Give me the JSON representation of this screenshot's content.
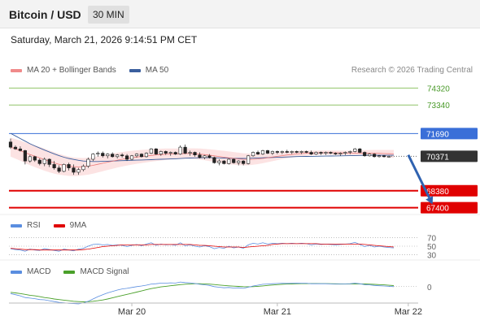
{
  "header": {
    "title": "Bitcoin / USD",
    "interval": "30 MIN"
  },
  "datetime": "Saturday, March 21, 2026 9:14:51 PM CET",
  "copyright": "Research © 2026 Trading Central",
  "colors": {
    "resistance": "#90c468",
    "pivot": "#3a6fd8",
    "support": "#e00000",
    "current": "#333333",
    "bollinger_fill": "#fbdcdc",
    "ma20": "#e86060",
    "ma50": "#3b5f9e",
    "rsi": "#5a8ee0",
    "rsi_ma": "#e00000",
    "macd": "#5a8ee0",
    "macd_signal": "#4aa02a",
    "arrow": "#2f62b0"
  },
  "chart_data": [
    {
      "type": "line",
      "name": "price",
      "legend": [
        {
          "label": "MA 20 + Bollinger Bands",
          "color": "#f08a8a"
        },
        {
          "label": "MA 50",
          "color": "#3b5f9e"
        }
      ],
      "ylim": [
        67100,
        74900
      ],
      "x_ticks": [
        {
          "label": "Mar 20",
          "index": 25
        },
        {
          "label": "Mar 21",
          "index": 55
        },
        {
          "label": "Mar 22",
          "index": 82
        }
      ],
      "levels": [
        {
          "label": "74320",
          "value": 74320,
          "role": "resistance"
        },
        {
          "label": "73340",
          "value": 73340,
          "role": "resistance"
        },
        {
          "label": "71690",
          "value": 71690,
          "role": "pivot"
        },
        {
          "label": "70371",
          "value": 70371,
          "role": "current"
        },
        {
          "label": "68380",
          "value": 68380,
          "role": "support"
        },
        {
          "label": "67400",
          "value": 67400,
          "role": "support"
        }
      ],
      "arrow": {
        "from": {
          "index": 82,
          "value": 70450
        },
        "to": {
          "index": 87,
          "value": 67600
        }
      },
      "candles": [
        [
          71200,
          71400,
          70800,
          70900
        ],
        [
          70900,
          71000,
          70750,
          70800
        ],
        [
          70800,
          70950,
          70650,
          70700
        ],
        [
          70700,
          70750,
          69900,
          70100
        ],
        [
          70100,
          70450,
          70000,
          70350
        ],
        [
          70350,
          70400,
          70050,
          70150
        ],
        [
          70150,
          70250,
          69850,
          69950
        ],
        [
          69950,
          70300,
          69800,
          70200
        ],
        [
          70200,
          70250,
          69750,
          69900
        ],
        [
          69900,
          70100,
          69600,
          69700
        ],
        [
          69700,
          69850,
          69400,
          69500
        ],
        [
          69500,
          69950,
          69450,
          69900
        ],
        [
          69900,
          70000,
          69550,
          69700
        ],
        [
          69700,
          69900,
          69300,
          69450
        ],
        [
          69450,
          69700,
          69300,
          69600
        ],
        [
          69600,
          69900,
          69500,
          69800
        ],
        [
          69800,
          70300,
          69700,
          70200
        ],
        [
          70200,
          70550,
          70100,
          70500
        ],
        [
          70500,
          70650,
          70350,
          70550
        ],
        [
          70550,
          70650,
          70300,
          70400
        ],
        [
          70400,
          70550,
          70250,
          70500
        ],
        [
          70500,
          70600,
          70300,
          70350
        ],
        [
          70350,
          70500,
          70250,
          70450
        ],
        [
          70450,
          70550,
          70300,
          70400
        ],
        [
          70400,
          70500,
          70100,
          70200
        ],
        [
          70200,
          70450,
          70150,
          70400
        ],
        [
          70400,
          70550,
          70300,
          70500
        ],
        [
          70500,
          70550,
          70300,
          70350
        ],
        [
          70350,
          70600,
          70300,
          70550
        ],
        [
          70550,
          70850,
          70500,
          70800
        ],
        [
          70800,
          70850,
          70450,
          70500
        ],
        [
          70500,
          70700,
          70400,
          70650
        ],
        [
          70650,
          70700,
          70450,
          70550
        ],
        [
          70550,
          70650,
          70400,
          70600
        ],
        [
          70600,
          70650,
          70450,
          70500
        ],
        [
          70500,
          71000,
          70450,
          70900
        ],
        [
          70900,
          71050,
          70500,
          70550
        ],
        [
          70550,
          70700,
          70400,
          70600
        ],
        [
          70600,
          70650,
          70350,
          70450
        ],
        [
          70450,
          70600,
          70250,
          70300
        ],
        [
          70300,
          70450,
          70200,
          70400
        ],
        [
          70400,
          70500,
          70250,
          70300
        ],
        [
          70300,
          70350,
          69950,
          70000
        ],
        [
          70000,
          70200,
          69850,
          70100
        ],
        [
          70100,
          70150,
          69900,
          69950
        ],
        [
          69950,
          70250,
          69900,
          70200
        ],
        [
          70200,
          70250,
          69950,
          70000
        ],
        [
          70000,
          70150,
          69850,
          70100
        ],
        [
          70100,
          70150,
          69850,
          69950
        ],
        [
          69950,
          70450,
          69900,
          70400
        ],
        [
          70400,
          70650,
          70350,
          70600
        ],
        [
          70600,
          70700,
          70450,
          70500
        ],
        [
          70500,
          70750,
          70450,
          70700
        ],
        [
          70700,
          70750,
          70500,
          70550
        ],
        [
          70550,
          70700,
          70450,
          70650
        ],
        [
          70650,
          70700,
          70500,
          70600
        ],
        [
          70600,
          70700,
          70500,
          70650
        ],
        [
          70650,
          70750,
          70550,
          70600
        ],
        [
          70600,
          70700,
          70500,
          70650
        ],
        [
          70650,
          70700,
          70550,
          70600
        ],
        [
          70600,
          70700,
          70500,
          70650
        ],
        [
          70650,
          70700,
          70550,
          70600
        ],
        [
          70600,
          70700,
          70450,
          70500
        ],
        [
          70500,
          70650,
          70450,
          70600
        ],
        [
          70600,
          70650,
          70450,
          70550
        ],
        [
          70550,
          70650,
          70450,
          70600
        ],
        [
          70600,
          70650,
          70500,
          70550
        ],
        [
          70550,
          70600,
          70450,
          70500
        ],
        [
          70500,
          70600,
          70400,
          70550
        ],
        [
          70550,
          70650,
          70450,
          70600
        ],
        [
          70600,
          70700,
          70500,
          70650
        ],
        [
          70650,
          70850,
          70600,
          70800
        ],
        [
          70800,
          70850,
          70550,
          70600
        ],
        [
          70600,
          70650,
          70350,
          70400
        ],
        [
          70400,
          70550,
          70350,
          70500
        ],
        [
          70500,
          70550,
          70300,
          70350
        ],
        [
          70350,
          70450,
          70300,
          70400
        ],
        [
          70400,
          70450,
          70300,
          70350
        ],
        [
          70350,
          70400,
          70300,
          70371
        ]
      ],
      "ma50": [
        71700,
        71550,
        71400,
        71250,
        71100,
        70970,
        70850,
        70730,
        70620,
        70510,
        70410,
        70320,
        70250,
        70190,
        70140,
        70100,
        70080,
        70070,
        70070,
        70080,
        70090,
        70100,
        70110,
        70120,
        70130,
        70140,
        70150,
        70160,
        70170,
        70180,
        70190,
        70200,
        70210,
        70220,
        70230,
        70245,
        70260,
        70270,
        70280,
        70285,
        70290,
        70290,
        70285,
        70280,
        70270,
        70260,
        70255,
        70250,
        70250,
        70255,
        70265,
        70275,
        70285,
        70295,
        70305,
        70315,
        70325,
        70335,
        70345,
        70355,
        70360,
        70365,
        70370,
        70375,
        70380,
        70385,
        70390,
        70395,
        70400,
        70405,
        70410,
        70415,
        70420,
        70425,
        70430,
        70430,
        70430,
        70430,
        70430,
        70430
      ],
      "ma20": [
        70900,
        70800,
        70700,
        70580,
        70480,
        70380,
        70280,
        70180,
        70080,
        69990,
        69910,
        69850,
        69800,
        69770,
        69760,
        69770,
        69800,
        69850,
        69910,
        69970,
        70030,
        70090,
        70150,
        70200,
        70250,
        70290,
        70330,
        70360,
        70390,
        70420,
        70450,
        70470,
        70490,
        70500,
        70510,
        70520,
        70530,
        70530,
        70520,
        70500,
        70470,
        70440,
        70400,
        70360,
        70320,
        70280,
        70250,
        70220,
        70200,
        70190,
        70200,
        70220,
        70250,
        70290,
        70330,
        70370,
        70410,
        70450,
        70480,
        70510,
        70530,
        70550,
        70560,
        70570,
        70575,
        70580,
        70580,
        70575,
        70570,
        70565,
        70560,
        70560,
        70560,
        70560,
        70555,
        70550,
        70540,
        70530,
        70520,
        70510
      ],
      "bb_half_width": [
        550,
        560,
        580,
        600,
        620,
        630,
        640,
        640,
        630,
        620,
        600,
        580,
        560,
        540,
        520,
        500,
        490,
        480,
        470,
        460,
        450,
        440,
        430,
        420,
        410,
        400,
        390,
        380,
        370,
        360,
        350,
        340,
        330,
        320,
        310,
        300,
        300,
        300,
        310,
        320,
        330,
        340,
        350,
        360,
        370,
        370,
        370,
        360,
        350,
        340,
        320,
        300,
        280,
        260,
        240,
        220,
        200,
        190,
        180,
        170,
        160,
        150,
        140,
        130,
        130,
        130,
        130,
        130,
        130,
        130,
        140,
        150,
        160,
        170,
        180,
        190,
        200,
        210,
        220,
        230
      ]
    },
    {
      "type": "line",
      "name": "rsi",
      "legend": [
        {
          "label": "RSI",
          "color": "#5a8ee0"
        },
        {
          "label": "9MA",
          "color": "#e00000"
        }
      ],
      "ylim": [
        25,
        75
      ],
      "levels": [
        {
          "label": "70",
          "value": 70
        },
        {
          "label": "50",
          "value": 50
        },
        {
          "label": "30",
          "value": 30
        }
      ],
      "rsi": [
        44,
        42,
        41,
        38,
        43,
        41,
        40,
        44,
        42,
        40,
        38,
        43,
        41,
        39,
        43,
        45,
        50,
        54,
        55,
        53,
        54,
        52,
        53,
        52,
        49,
        52,
        54,
        51,
        55,
        58,
        52,
        55,
        53,
        54,
        52,
        58,
        51,
        53,
        50,
        48,
        51,
        49,
        44,
        47,
        45,
        50,
        46,
        48,
        45,
        53,
        57,
        55,
        58,
        55,
        57,
        56,
        57,
        56,
        57,
        56,
        57,
        56,
        53,
        55,
        54,
        55,
        54,
        53,
        54,
        55,
        56,
        59,
        54,
        49,
        52,
        48,
        50,
        48,
        47,
        46
      ],
      "ma": [
        45,
        44,
        43,
        42,
        42,
        42,
        41,
        41,
        41,
        41,
        41,
        41,
        41,
        41,
        41,
        42,
        43,
        45,
        47,
        49,
        50,
        51,
        52,
        53,
        53,
        53,
        53,
        53,
        53,
        54,
        54,
        54,
        54,
        54,
        54,
        54,
        54,
        54,
        53,
        52,
        52,
        51,
        50,
        49,
        48,
        48,
        48,
        48,
        47,
        48,
        49,
        50,
        51,
        52,
        54,
        55,
        56,
        56,
        56,
        56,
        56,
        56,
        56,
        56,
        55,
        55,
        55,
        55,
        55,
        55,
        55,
        55,
        55,
        54,
        53,
        52,
        51,
        50,
        49,
        48
      ]
    },
    {
      "type": "line",
      "name": "macd",
      "legend": [
        {
          "label": "MACD",
          "color": "#5a8ee0"
        },
        {
          "label": "MACD Signal",
          "color": "#4aa02a"
        }
      ],
      "ylim": [
        -300,
        180
      ],
      "levels": [
        {
          "label": "0",
          "value": 0
        }
      ],
      "macd": [
        -120,
        -140,
        -160,
        -190,
        -200,
        -210,
        -225,
        -230,
        -245,
        -260,
        -275,
        -280,
        -290,
        -295,
        -300,
        -285,
        -255,
        -215,
        -175,
        -140,
        -110,
        -85,
        -60,
        -40,
        -30,
        -15,
        0,
        10,
        25,
        45,
        50,
        60,
        60,
        65,
        62,
        80,
        70,
        65,
        55,
        40,
        30,
        20,
        0,
        -10,
        -20,
        -15,
        -25,
        -20,
        -30,
        -10,
        10,
        25,
        40,
        45,
        50,
        55,
        58,
        56,
        58,
        60,
        58,
        58,
        50,
        52,
        50,
        50,
        48,
        45,
        45,
        47,
        50,
        60,
        50,
        35,
        30,
        20,
        15,
        10,
        5,
        0
      ],
      "signal": [
        -100,
        -110,
        -120,
        -135,
        -150,
        -160,
        -175,
        -190,
        -200,
        -215,
        -225,
        -235,
        -245,
        -255,
        -260,
        -265,
        -262,
        -255,
        -245,
        -232,
        -215,
        -195,
        -175,
        -155,
        -135,
        -115,
        -95,
        -75,
        -55,
        -35,
        -20,
        -5,
        5,
        15,
        25,
        35,
        42,
        48,
        50,
        50,
        47,
        43,
        36,
        28,
        20,
        14,
        8,
        4,
        0,
        -2,
        0,
        5,
        12,
        20,
        28,
        35,
        40,
        44,
        48,
        50,
        52,
        53,
        53,
        53,
        52,
        51,
        50,
        49,
        48,
        47,
        47,
        48,
        48,
        46,
        43,
        39,
        35,
        30,
        24,
        18
      ]
    }
  ]
}
